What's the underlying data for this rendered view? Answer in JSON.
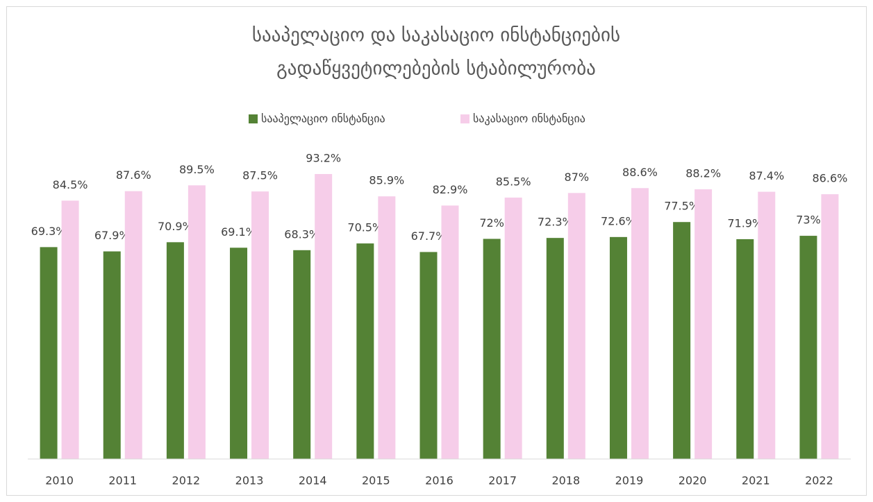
{
  "chart_data": {
    "type": "bar",
    "title": [
      "სააპელაციო და საკასაციო ინსტანციების",
      "გადაწყვეტილებების სტაბილურობა"
    ],
    "categories": [
      "2010",
      "2011",
      "2012",
      "2013",
      "2014",
      "2015",
      "2016",
      "2017",
      "2018",
      "2019",
      "2020",
      "2021",
      "2022"
    ],
    "series": [
      {
        "name": "სააპელაციო ინსტანცია",
        "color": "#548235",
        "values": [
          69.3,
          67.9,
          70.9,
          69.1,
          68.3,
          70.5,
          67.7,
          72,
          72.3,
          72.6,
          77.5,
          71.9,
          73
        ],
        "value_labels": [
          "69.3%",
          "67.9%",
          "70.9%",
          "69.1%",
          "68.3%",
          "70.5%",
          "67.7%",
          "72%",
          "72.3%",
          "72.6%",
          "77.5%",
          "71.9%",
          "73%"
        ]
      },
      {
        "name": "საკასაციო ინსტანცია",
        "color": "#f6cde9",
        "values": [
          84.5,
          87.6,
          89.5,
          87.5,
          93.2,
          85.9,
          82.9,
          85.5,
          87,
          88.6,
          88.2,
          87.4,
          86.6
        ],
        "value_labels": [
          "84.5%",
          "87.6%",
          "89.5%",
          "87.5%",
          "93.2%",
          "85.9%",
          "82.9%",
          "85.5%",
          "87%",
          "88.6%",
          "88.2%",
          "87.4%",
          "86.6%"
        ]
      }
    ],
    "ylim": [
      0,
      100
    ],
    "legend": "top"
  }
}
